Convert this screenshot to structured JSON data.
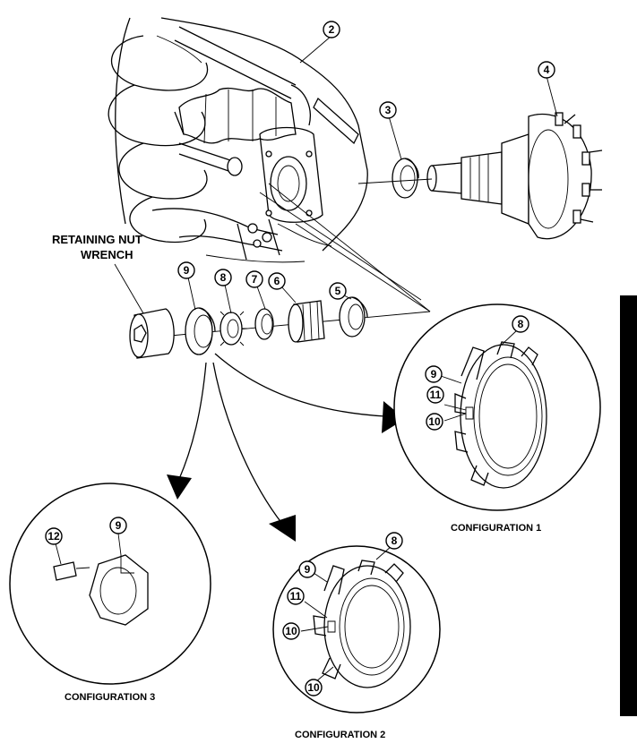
{
  "label_wrench": [
    "RETAINING NUT",
    "WRENCH"
  ],
  "captions": {
    "config1": "CONFIGURATION 1",
    "config2": "CONFIGURATION 2",
    "config3": "CONFIGURATION 3"
  },
  "callouts": {
    "c2": "2",
    "c3": "3",
    "c4": "4",
    "c5": "5",
    "c6": "6",
    "c7": "7",
    "c8": "8",
    "c9": "9",
    "cfg1_8": "8",
    "cfg1_9": "9",
    "cfg1_10": "10",
    "cfg1_11": "11",
    "cfg2_8": "8",
    "cfg2_9": "9",
    "cfg2_10a": "10",
    "cfg2_10b": "10",
    "cfg2_11": "11",
    "cfg3_9": "9",
    "cfg3_12": "12"
  }
}
